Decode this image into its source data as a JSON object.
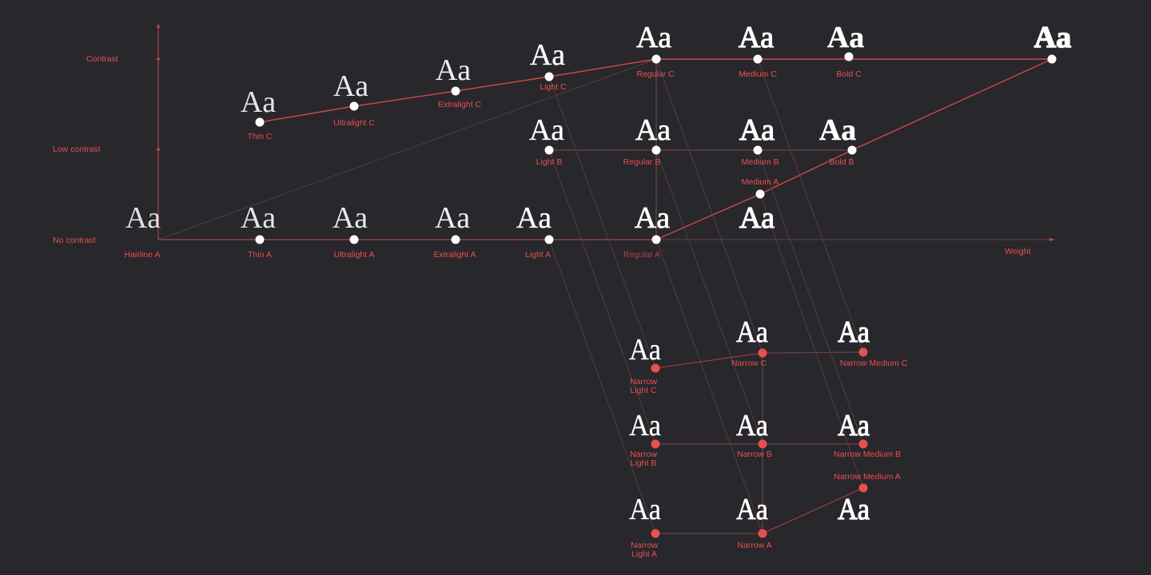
{
  "colors": {
    "background": "#28272c",
    "accent": "#e8504f",
    "dim_line": "#6a4244",
    "node_white": "#ffffff"
  },
  "axes": {
    "y_labels": [
      "Contrast",
      "Low contrast",
      "No contrast"
    ],
    "x_label": "Weight"
  },
  "glyph": "Aa",
  "nodes": [
    {
      "id": "hairline-a",
      "label": [
        "Hairline A"
      ],
      "weight": "hairline",
      "dot": "none"
    },
    {
      "id": "thin-a",
      "label": [
        "Thin A"
      ],
      "weight": "thin",
      "dot": "white"
    },
    {
      "id": "ultralight-a",
      "label": [
        "Ultralight A"
      ],
      "weight": "ultralight",
      "dot": "white"
    },
    {
      "id": "extralight-a",
      "label": [
        "Extralight A"
      ],
      "weight": "extralight",
      "dot": "white"
    },
    {
      "id": "light-a",
      "label": [
        "Light A"
      ],
      "weight": "light",
      "dot": "white"
    },
    {
      "id": "regular-a",
      "label": [
        "Regular A"
      ],
      "weight": "regular",
      "dot": "white"
    },
    {
      "id": "medium-a",
      "label": [
        "Medium A"
      ],
      "weight": "medium",
      "dot": "white"
    },
    {
      "id": "thin-c",
      "label": [
        "Thin C"
      ],
      "weight": "thin",
      "dot": "white"
    },
    {
      "id": "ultralight-c",
      "label": [
        "Ultralight C"
      ],
      "weight": "ultralight",
      "dot": "white"
    },
    {
      "id": "extralight-c",
      "label": [
        "Extralight C"
      ],
      "weight": "extralight",
      "dot": "white"
    },
    {
      "id": "light-c",
      "label": [
        "Light C"
      ],
      "weight": "light",
      "dot": "white"
    },
    {
      "id": "regular-c",
      "label": [
        "Regular C"
      ],
      "weight": "regular",
      "dot": "white"
    },
    {
      "id": "medium-c",
      "label": [
        "Medium C"
      ],
      "weight": "medium",
      "dot": "white"
    },
    {
      "id": "bold-c",
      "label": [
        "Bold C"
      ],
      "weight": "bold",
      "dot": "white"
    },
    {
      "id": "black-c",
      "label": [],
      "weight": "black",
      "dot": "white"
    },
    {
      "id": "light-b",
      "label": [
        "Light B"
      ],
      "weight": "light",
      "dot": "white"
    },
    {
      "id": "regular-b",
      "label": [
        "Regular B"
      ],
      "weight": "regular",
      "dot": "white"
    },
    {
      "id": "medium-b",
      "label": [
        "Medium B"
      ],
      "weight": "medium",
      "dot": "white"
    },
    {
      "id": "bold-b",
      "label": [
        "Bold B"
      ],
      "weight": "bold",
      "dot": "white"
    },
    {
      "id": "narrow-light-c",
      "label": [
        "Narrow",
        "Light C"
      ],
      "weight": "light",
      "dot": "red"
    },
    {
      "id": "narrow-c",
      "label": [
        "Narrow C"
      ],
      "weight": "regular",
      "dot": "red"
    },
    {
      "id": "narrow-medium-c",
      "label": [
        "Narrow Medium C"
      ],
      "weight": "medium",
      "dot": "red"
    },
    {
      "id": "narrow-light-b",
      "label": [
        "Narrow",
        "Light B"
      ],
      "weight": "light",
      "dot": "red"
    },
    {
      "id": "narrow-b",
      "label": [
        "Narrow B"
      ],
      "weight": "regular",
      "dot": "red"
    },
    {
      "id": "narrow-medium-b",
      "label": [
        "Narrow Medium B"
      ],
      "weight": "medium",
      "dot": "red"
    },
    {
      "id": "narrow-light-a",
      "label": [
        "Narrow",
        "Light A"
      ],
      "weight": "light",
      "dot": "red"
    },
    {
      "id": "narrow-a",
      "label": [
        "Narrow A"
      ],
      "weight": "regular",
      "dot": "red"
    },
    {
      "id": "narrow-medium-a",
      "label": [
        "Narrow Medium A"
      ],
      "weight": "medium",
      "dot": "red"
    }
  ],
  "edges": [
    {
      "from": "hairline-a",
      "to": "regular-a",
      "style": "strong"
    },
    {
      "from": "thin-c",
      "to": "ultralight-c",
      "style": "strong"
    },
    {
      "from": "ultralight-c",
      "to": "extralight-c",
      "style": "strong"
    },
    {
      "from": "extralight-c",
      "to": "light-c",
      "style": "strong"
    },
    {
      "from": "light-c",
      "to": "regular-c",
      "style": "strong"
    },
    {
      "from": "regular-c",
      "to": "black-c",
      "style": "strong"
    },
    {
      "from": "black-c",
      "to": "bold-b",
      "style": "strong"
    },
    {
      "from": "bold-b",
      "to": "medium-a",
      "style": "strong"
    },
    {
      "from": "medium-a",
      "to": "regular-a",
      "style": "strong"
    },
    {
      "from": "hairline-a",
      "to": "regular-c",
      "style": "faint"
    },
    {
      "from": "light-b",
      "to": "bold-b",
      "style": "dim"
    },
    {
      "from": "regular-c",
      "to": "regular-a",
      "style": "dim"
    },
    {
      "from": "light-c",
      "to": "narrow-light-c",
      "style": "faint"
    },
    {
      "from": "light-b",
      "to": "narrow-light-b",
      "style": "faint"
    },
    {
      "from": "light-a",
      "to": "narrow-light-a",
      "style": "faint"
    },
    {
      "from": "regular-c",
      "to": "narrow-c",
      "style": "faint"
    },
    {
      "from": "regular-b",
      "to": "narrow-b",
      "style": "faint"
    },
    {
      "from": "regular-a",
      "to": "narrow-a",
      "style": "faint"
    },
    {
      "from": "medium-c",
      "to": "narrow-medium-c",
      "style": "faint"
    },
    {
      "from": "medium-b",
      "to": "narrow-medium-b",
      "style": "faint"
    },
    {
      "from": "medium-a",
      "to": "narrow-medium-a",
      "style": "faint"
    },
    {
      "from": "narrow-light-c",
      "to": "narrow-c",
      "style": "mid"
    },
    {
      "from": "narrow-c",
      "to": "narrow-medium-c",
      "style": "dim"
    },
    {
      "from": "narrow-c",
      "to": "narrow-a",
      "style": "dim"
    },
    {
      "from": "narrow-light-b",
      "to": "narrow-medium-b",
      "style": "dim"
    },
    {
      "from": "narrow-light-a",
      "to": "narrow-a",
      "style": "dim"
    },
    {
      "from": "narrow-a",
      "to": "narrow-medium-a",
      "style": "mid"
    }
  ]
}
